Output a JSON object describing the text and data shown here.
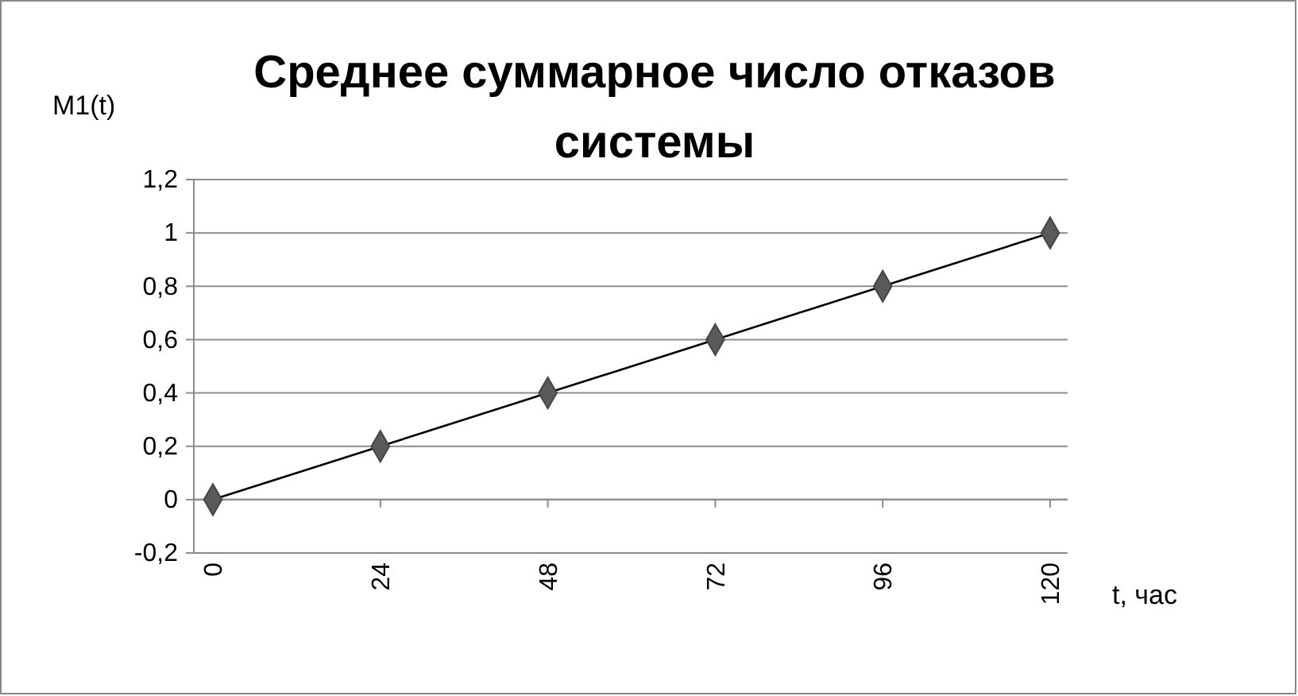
{
  "chart_data": {
    "type": "line",
    "title": "Среднее суммарное число отказов системы",
    "xlabel": "t, час",
    "ylabel": "M1(t)",
    "categories": [
      "0",
      "24",
      "48",
      "72",
      "96",
      "120"
    ],
    "series": [
      {
        "color": "#000000",
        "values": [
          0,
          0.2,
          0.4,
          0.6,
          0.8,
          1
        ]
      }
    ],
    "ylim": [
      -0.2,
      1.2
    ],
    "yticks": [
      {
        "value": -0.2,
        "label": "-0,2"
      },
      {
        "value": 0,
        "label": "0"
      },
      {
        "value": 0.2,
        "label": "0,2"
      },
      {
        "value": 0.4,
        "label": "0,4"
      },
      {
        "value": 0.6,
        "label": "0,6"
      },
      {
        "value": 0.8,
        "label": "0,8"
      },
      {
        "value": 1,
        "label": "1"
      },
      {
        "value": 1.2,
        "label": "1,2"
      }
    ],
    "grid": "y",
    "marker": "diamond",
    "line_style": "solid"
  }
}
